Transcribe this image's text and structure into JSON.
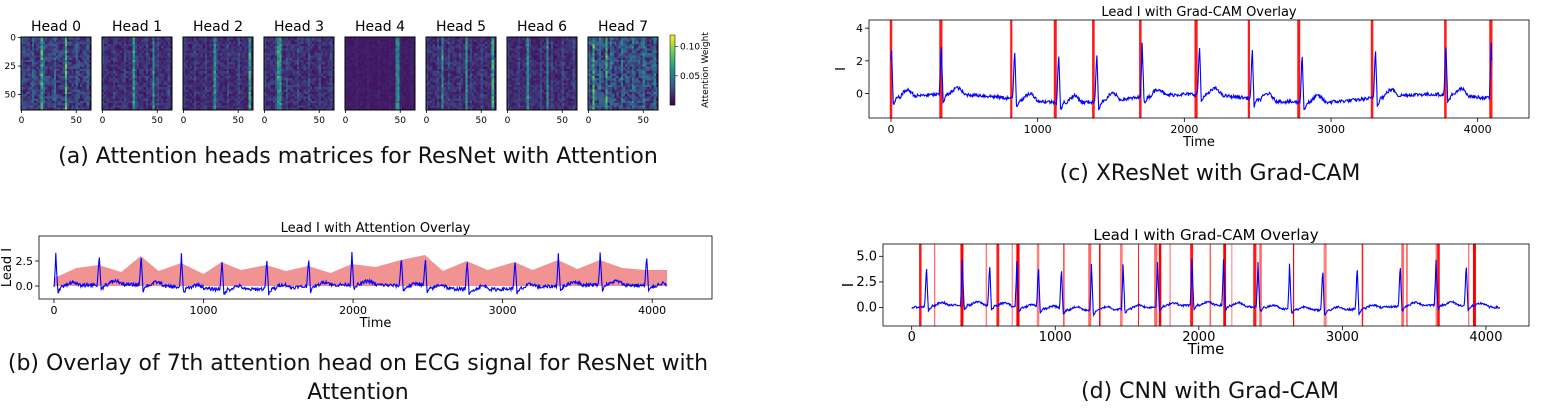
{
  "captions": {
    "a": "(a) Attention heads matrices for ResNet with Attention",
    "b_line1": "(b) Overlay of 7th attention head on ECG signal for ResNet with",
    "b_line2": "Attention",
    "c": "(c) XResNet with Grad-CAM",
    "d": "(d) CNN with Grad-CAM"
  },
  "colors": {
    "signal": "#0000ff",
    "attention_fill": "#f08080",
    "gradcam": "#ff0000",
    "axis": "#000000",
    "colormap": [
      "#440154",
      "#3b528b",
      "#21918c",
      "#5ec962",
      "#fde725"
    ]
  },
  "chart_data": [
    {
      "id": "a",
      "type": "heatmap",
      "panels": [
        "Head 0",
        "Head 1",
        "Head 2",
        "Head 3",
        "Head 4",
        "Head 5",
        "Head 6",
        "Head 7"
      ],
      "matrix_size": 64,
      "xticks": [
        0,
        50
      ],
      "yticks": [
        0,
        25,
        50
      ],
      "colorbar": {
        "label": "Attention Weight",
        "ticks": [
          0.05,
          0.1
        ],
        "tick_labels": [
          "0.05",
          "0.10"
        ],
        "range": [
          0,
          0.12
        ]
      }
    },
    {
      "id": "b",
      "type": "area",
      "title": "Lead I with Attention Overlay",
      "xlabel": "Time",
      "ylabel": "Lead I",
      "xlim": [
        -100,
        4400
      ],
      "ylim": [
        -1.3,
        5.0
      ],
      "xticks": [
        0,
        1000,
        2000,
        3000,
        4000
      ],
      "yticks": [
        0.0,
        2.5
      ],
      "ytick_labels": [
        "0.0",
        "2.5"
      ],
      "r_peaks": [
        10,
        300,
        580,
        850,
        1120,
        1420,
        1700,
        1990,
        2320,
        2480,
        2760,
        3080,
        3370,
        3650,
        3960
      ],
      "peak_height": 3.8,
      "attention_x": [
        0,
        150,
        300,
        450,
        580,
        700,
        850,
        1000,
        1120,
        1250,
        1420,
        1550,
        1700,
        1850,
        1990,
        2150,
        2320,
        2480,
        2600,
        2760,
        2900,
        3080,
        3200,
        3370,
        3500,
        3650,
        3800,
        3960,
        4100
      ],
      "attention_y": [
        0.8,
        1.8,
        2.1,
        1.4,
        3.0,
        1.5,
        2.3,
        1.2,
        2.4,
        1.6,
        2.1,
        1.5,
        2.0,
        1.3,
        2.2,
        1.9,
        2.6,
        3.1,
        1.5,
        2.5,
        1.6,
        2.4,
        1.6,
        2.6,
        1.7,
        2.6,
        1.8,
        1.6,
        1.6
      ]
    },
    {
      "id": "c",
      "type": "line",
      "title": "Lead I with Grad-CAM Overlay",
      "xlabel": "Time",
      "ylabel": "I",
      "xlim": [
        -150,
        4350
      ],
      "ylim": [
        -1.5,
        4.5
      ],
      "xticks": [
        0,
        1000,
        2000,
        3000,
        4000
      ],
      "yticks": [
        0,
        2,
        4
      ],
      "r_peaks": [
        0,
        340,
        840,
        1140,
        1400,
        1710,
        2100,
        2460,
        2800,
        3300,
        3780,
        4090
      ],
      "peak_height": 4.0,
      "gradcam_lines": [
        0,
        340,
        820,
        1120,
        1380,
        1700,
        2080,
        2440,
        2780,
        3280,
        3780,
        4090
      ]
    },
    {
      "id": "d",
      "type": "line",
      "title": "Lead I with Grad-CAM Overlay",
      "xlabel": "Time",
      "ylabel": "I",
      "xlim": [
        -200,
        4300
      ],
      "ylim": [
        -1.8,
        6.2
      ],
      "xticks": [
        0,
        1000,
        2000,
        3000,
        4000
      ],
      "yticks": [
        0.0,
        2.5,
        5.0
      ],
      "ytick_labels": [
        "0.0",
        "2.5",
        "5.0"
      ],
      "r_peaks": [
        100,
        350,
        540,
        730,
        880,
        1040,
        1250,
        1470,
        1710,
        1950,
        2170,
        2410,
        2630,
        2860,
        3100,
        3400,
        3650,
        3860
      ],
      "peak_height": 5.2,
      "gradcam_lines": [
        60,
        160,
        350,
        520,
        600,
        700,
        740,
        880,
        1060,
        1240,
        1310,
        1460,
        1580,
        1700,
        1730,
        1800,
        1950,
        2080,
        2180,
        2230,
        2390,
        2430,
        2660,
        2880,
        3140,
        3420,
        3450,
        3660,
        3670,
        3880,
        3920
      ]
    }
  ]
}
